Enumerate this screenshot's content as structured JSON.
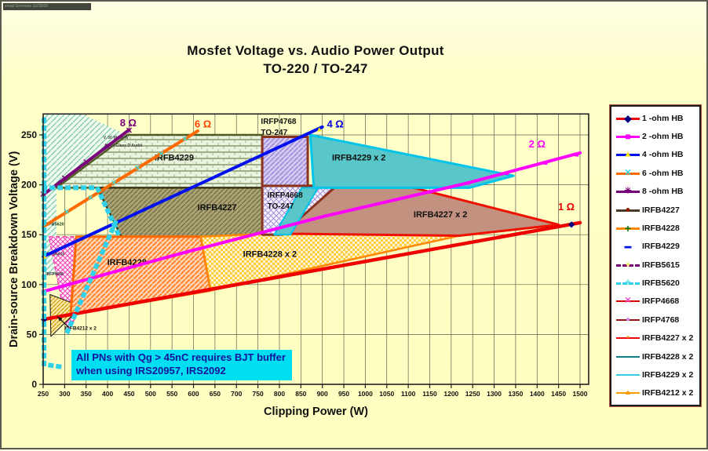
{
  "frame": {
    "corner_text": "email Germano 10/28/08"
  },
  "title": {
    "line1": "Mosfet Voltage vs.  Audio Power Output",
    "line2": "TO-220 / TO-247"
  },
  "note": {
    "line1": "All PNs with Qg > 45nC requires BJT buffer",
    "line2": "when using IRS20957, IRS2092"
  },
  "legend": {
    "items": [
      {
        "label": "1 -ohm HB",
        "line": {
          "color": "#ee0000",
          "style": "solid",
          "width": 3
        },
        "marker": {
          "glyph": "◆",
          "color": "#000080",
          "size": 12
        }
      },
      {
        "label": "2 -ohm HB",
        "line": {
          "color": "#ff00ff",
          "style": "solid",
          "width": 3
        },
        "marker": {
          "glyph": "■",
          "color": "#ff00ff",
          "size": 12
        }
      },
      {
        "label": "4 -ohm HB",
        "line": {
          "color": "#0011ee",
          "style": "solid",
          "width": 3
        },
        "marker": {
          "glyph": "▲",
          "color": "#ffe400",
          "size": 11
        }
      },
      {
        "label": "6 -ohm HB",
        "line": {
          "color": "#ff6a00",
          "style": "solid",
          "width": 3
        },
        "marker": {
          "glyph": "✕",
          "color": "#2fd0e8",
          "size": 11
        }
      },
      {
        "label": "8 -ohm HB",
        "line": {
          "color": "#7a007a",
          "style": "solid",
          "width": 3
        },
        "marker": {
          "glyph": "✳",
          "color": "#7a007a",
          "size": 11
        }
      },
      {
        "label": "IRFB4227",
        "line": {
          "color": "#4a3b22",
          "style": "solid",
          "width": 3
        },
        "marker": {
          "glyph": "●",
          "color": "#8b1a00",
          "size": 11
        }
      },
      {
        "label": "IRFB4228",
        "line": {
          "color": "#ff8800",
          "style": "solid",
          "width": 3
        },
        "marker": {
          "glyph": "+",
          "color": "#007700",
          "size": 14
        }
      },
      {
        "label": "IRFB4229",
        "line": {
          "color": "none",
          "style": "none",
          "width": 0
        },
        "marker": {
          "glyph": "▬",
          "color": "#0011ee",
          "size": 9
        }
      },
      {
        "label": "IRFB5615",
        "line": {
          "color": "#7a007a",
          "style": "dashed",
          "width": 3
        },
        "marker": {
          "glyph": "●",
          "color": "#ffe46a",
          "size": 10
        }
      },
      {
        "label": "IRFB5620",
        "line": {
          "color": "#2fd0e8",
          "style": "dashed",
          "width": 3
        },
        "marker": {
          "glyph": "✦",
          "color": "#7de4ef",
          "size": 11
        }
      },
      {
        "label": "IRFP4668",
        "line": {
          "color": "#dd0000",
          "style": "solid",
          "width": 2
        },
        "marker": {
          "glyph": "✕",
          "color": "#ff44cc",
          "size": 11
        }
      },
      {
        "label": "IRFP4768",
        "line": {
          "color": "#991111",
          "style": "solid",
          "width": 2
        },
        "marker": {
          "glyph": "●",
          "color": "#cc88ee",
          "size": 10
        }
      },
      {
        "label": "IRFB4227 x 2",
        "line": {
          "color": "#ee0000",
          "style": "solid",
          "width": 2
        },
        "marker": {
          "glyph": "▪",
          "color": "#ff8800",
          "size": 10
        }
      },
      {
        "label": "IRFB4228 x 2",
        "line": {
          "color": "#0e7d86",
          "style": "solid",
          "width": 2
        },
        "marker": {
          "glyph": "",
          "color": "",
          "size": 0
        }
      },
      {
        "label": "IRFB4229 x 2",
        "line": {
          "color": "#35cbe3",
          "style": "solid",
          "width": 2
        },
        "marker": {
          "glyph": "",
          "color": "",
          "size": 0
        }
      },
      {
        "label": "IRFB4212 x 2",
        "line": {
          "color": "#ff9900",
          "style": "solid",
          "width": 2
        },
        "marker": {
          "glyph": "▲",
          "color": "#ff9900",
          "size": 10
        }
      }
    ]
  },
  "chart_data": {
    "type": "area",
    "title": "Mosfet Voltage vs. Audio Power Output TO-220 / TO-247",
    "xlabel": "Clipping Power (W)",
    "ylabel": "Drain-source Breakdown Voltage (V)",
    "xlim": [
      250,
      1520
    ],
    "ylim": [
      0,
      271
    ],
    "grid": true,
    "x_ticks": [
      250,
      300,
      350,
      400,
      450,
      500,
      550,
      600,
      650,
      700,
      750,
      800,
      850,
      900,
      950,
      1000,
      1050,
      1100,
      1150,
      1200,
      1250,
      1300,
      1350,
      1400,
      1450,
      1500
    ],
    "y_ticks": [
      0,
      50,
      100,
      150,
      200,
      250
    ],
    "regions": [
      {
        "name": "IRFB5615-area",
        "fill": "greenhatch",
        "stroke": "none",
        "w": 0,
        "points": [
          [
            252,
            271
          ],
          [
            340,
            271
          ],
          [
            446,
            250
          ],
          [
            281,
            197
          ],
          [
            281,
            110
          ],
          [
            252,
            110
          ]
        ]
      },
      {
        "name": "IRFB4229",
        "fill": "brick",
        "stroke": "#4f5a22",
        "w": 2.5,
        "points": [
          [
            281,
            197
          ],
          [
            446,
            250
          ],
          [
            760,
            250
          ],
          [
            760,
            197
          ]
        ]
      },
      {
        "name": "IRFB4227",
        "fill": "olive",
        "stroke": "#3f3a1c",
        "w": 2.5,
        "points": [
          [
            376,
            197
          ],
          [
            760,
            197
          ],
          [
            760,
            148
          ],
          [
            432,
            148
          ]
        ]
      },
      {
        "name": "IRFP4668-small",
        "fill": "pinkx",
        "stroke": "#f23fb4",
        "w": 1.5,
        "dash": "5 4",
        "points": [
          [
            263,
            148
          ],
          [
            412,
            148
          ],
          [
            308,
            52
          ]
        ]
      },
      {
        "name": "IRFB4212x2",
        "fill": "goldhatch",
        "stroke": "#111111",
        "w": 1,
        "points": [
          [
            266,
            90
          ],
          [
            340,
            78
          ],
          [
            268,
            48
          ]
        ]
      },
      {
        "name": "IRFB4228",
        "fill": "orangehatch",
        "stroke": "#ff6600",
        "w": 3,
        "points": [
          [
            327,
            148
          ],
          [
            617,
            148
          ],
          [
            640,
            94
          ],
          [
            314,
            70
          ]
        ]
      },
      {
        "name": "IRFB4228x2",
        "fill": "checker",
        "stroke": "#ff8800",
        "w": 2.5,
        "points": [
          [
            617,
            148
          ],
          [
            829,
            152
          ],
          [
            1219,
            149
          ],
          [
            640,
            94
          ]
        ]
      },
      {
        "name": "IRFB4227x2",
        "fill": "brown",
        "stroke": "#ee1100",
        "w": 3,
        "points": [
          [
            805,
            151
          ],
          [
            933,
            199
          ],
          [
            1095,
            199
          ],
          [
            1450,
            160
          ],
          [
            1219,
            149
          ]
        ]
      },
      {
        "name": "IRFP4668",
        "fill": "xhatch",
        "stroke": "#8a3420",
        "w": 3,
        "points": [
          [
            760,
            199
          ],
          [
            933,
            199
          ],
          [
            805,
            150
          ],
          [
            760,
            150
          ]
        ]
      },
      {
        "name": "IRFB4229x2-tail",
        "fill": "teal",
        "stroke": "#00c4ea",
        "w": 2,
        "points": [
          [
            788,
            150
          ],
          [
            826,
            150
          ],
          [
            890,
            197
          ],
          [
            852,
            197
          ]
        ]
      },
      {
        "name": "IRFB4229x2",
        "fill": "teal",
        "stroke": "#00c4ea",
        "w": 3,
        "points": [
          [
            872,
            250
          ],
          [
            1345,
            209
          ],
          [
            1242,
            197
          ],
          [
            880,
            197
          ]
        ]
      },
      {
        "name": "IRFP4768",
        "fill": "lavhatch",
        "stroke": "#8a3420",
        "w": 3,
        "points": [
          [
            760,
            199
          ],
          [
            866,
            199
          ],
          [
            866,
            248
          ],
          [
            760,
            248
          ]
        ]
      }
    ],
    "region_labels": [
      {
        "t": "IRFB4229",
        "p": 555,
        "v": 227,
        "s": 11
      },
      {
        "t": "IRFB4227",
        "p": 655,
        "v": 177,
        "s": 11
      },
      {
        "t": "IRFB4228",
        "p": 445,
        "v": 122,
        "s": 11
      },
      {
        "t": "IRFB4228 x 2",
        "p": 778,
        "v": 130,
        "s": 11
      },
      {
        "t": "IRFB4227 x 2",
        "p": 1175,
        "v": 170,
        "s": 11
      },
      {
        "t": "IRFB4229 x 2",
        "p": 985,
        "v": 227,
        "s": 11
      },
      {
        "t": "IRFP4768",
        "p": 757,
        "v": 263,
        "s": 10,
        "a": "start"
      },
      {
        "t": "TO-247",
        "p": 757,
        "v": 252,
        "s": 10,
        "a": "start"
      },
      {
        "t": "IRFP4668",
        "p": 772,
        "v": 189,
        "s": 10,
        "a": "start"
      },
      {
        "t": "TO-247",
        "p": 772,
        "v": 178,
        "s": 10,
        "a": "start"
      },
      {
        "t": "IRFB5620",
        "p": 253,
        "v": 160,
        "s": 5.5,
        "a": "start",
        "c": "#143d22"
      },
      {
        "t": "IRFB5615",
        "p": 258,
        "v": 130,
        "s": 5,
        "a": "start",
        "c": "#333333"
      },
      {
        "t": "IRFP4668",
        "p": 256,
        "v": 110,
        "s": 5,
        "a": "start",
        "c": "#333333"
      },
      {
        "t": "IRFB4212 x 2",
        "p": 300,
        "v": 56,
        "s": 6.5,
        "a": "start"
      },
      {
        "t": "V, 50 W HB W",
        "p": 390,
        "v": 247,
        "s": 5,
        "a": "start",
        "c": "#444444"
      },
      {
        "t": "at 4% Class D Audio",
        "p": 393,
        "v": 239,
        "s": 5,
        "a": "start",
        "c": "#444444"
      }
    ],
    "load_lines": [
      {
        "name": "8-ohm HB",
        "color": "#7a007a",
        "width": 4,
        "points": [
          [
            250,
            190
          ],
          [
            450,
            255
          ]
        ],
        "markers": [
          {
            "g": "✕",
            "c": "#7a007a",
            "s": 11,
            "p": 250,
            "v": 190
          },
          {
            "g": "✕",
            "c": "#7a007a",
            "s": 11,
            "p": 300,
            "v": 206
          },
          {
            "g": "✕",
            "c": "#7a007a",
            "s": 11,
            "p": 350,
            "v": 222
          },
          {
            "g": "✕",
            "c": "#7a007a",
            "s": 11,
            "p": 400,
            "v": 238
          },
          {
            "g": "✕",
            "c": "#7a007a",
            "s": 11,
            "p": 450,
            "v": 254
          }
        ],
        "label": {
          "t": "8 Ω",
          "p": 448,
          "v": 262,
          "c": "#7a007a"
        }
      },
      {
        "name": "6-ohm HB",
        "color": "#ff6a00",
        "width": 4,
        "points": [
          [
            250,
            158
          ],
          [
            610,
            254
          ]
        ],
        "markers": [
          {
            "g": "✕",
            "c": "#35dede",
            "s": 9,
            "p": 250,
            "v": 158
          },
          {
            "g": "✕",
            "c": "#35dede",
            "s": 9,
            "p": 305,
            "v": 173
          },
          {
            "g": "✕",
            "c": "#35dede",
            "s": 9,
            "p": 360,
            "v": 187
          },
          {
            "g": "✕",
            "c": "#35dede",
            "s": 9,
            "p": 415,
            "v": 202
          },
          {
            "g": "✕",
            "c": "#35dede",
            "s": 9,
            "p": 470,
            "v": 217
          },
          {
            "g": "✕",
            "c": "#35dede",
            "s": 9,
            "p": 525,
            "v": 231
          },
          {
            "g": "✕",
            "c": "#35dede",
            "s": 9,
            "p": 580,
            "v": 246
          }
        ],
        "label": {
          "t": "6 Ω",
          "p": 622,
          "v": 261,
          "c": "#ff4400"
        }
      },
      {
        "name": "4-ohm HB",
        "color": "#0011ee",
        "width": 4,
        "points": [
          [
            250,
            128
          ],
          [
            900,
            258
          ]
        ],
        "markers": [
          {
            "g": "▲",
            "c": "#ffe400",
            "s": 9,
            "p": 253,
            "v": 128
          },
          {
            "g": "▲",
            "c": "#ffe400",
            "s": 9,
            "p": 893,
            "v": 256
          }
        ],
        "label": {
          "t": "4 Ω",
          "p": 930,
          "v": 261,
          "c": "#0000dd"
        }
      },
      {
        "name": "2-ohm HB",
        "color": "#ff00ff",
        "width": 4,
        "points": [
          [
            250,
            93
          ],
          [
            560,
            130
          ],
          [
            900,
            168
          ],
          [
            1240,
            202
          ],
          [
            1500,
            232
          ]
        ],
        "markers": [
          {
            "g": "■",
            "c": "#ff00ff",
            "s": 9,
            "p": 250,
            "v": 93
          },
          {
            "g": "■",
            "c": "#ff00ff",
            "s": 9,
            "p": 1150,
            "v": 193
          },
          {
            "g": "■",
            "c": "#ff00ff",
            "s": 9,
            "p": 1240,
            "v": 202
          },
          {
            "g": "■",
            "c": "#ff00ff",
            "s": 9,
            "p": 1330,
            "v": 212
          },
          {
            "g": "■",
            "c": "#ff00ff",
            "s": 9,
            "p": 1420,
            "v": 222
          },
          {
            "g": "■",
            "c": "#ff00ff",
            "s": 10,
            "p": 1492,
            "v": 230
          }
        ],
        "label": {
          "t": "2 Ω",
          "p": 1400,
          "v": 241,
          "c": "#ff00ff"
        }
      },
      {
        "name": "1-ohm HB",
        "color": "#ee0000",
        "width": 4.5,
        "points": [
          [
            250,
            65
          ],
          [
            1500,
            162
          ]
        ],
        "markers": [
          {
            "g": "◆",
            "c": "#000080",
            "s": 10,
            "p": 252,
            "v": 65
          },
          {
            "g": "◆",
            "c": "#000080",
            "s": 10,
            "p": 1480,
            "v": 160
          }
        ],
        "label": {
          "t": "1 Ω",
          "p": 1468,
          "v": 178,
          "c": "#ee0000"
        }
      }
    ],
    "dashed_paths": [
      {
        "name": "IRFB5620-v",
        "color": "#2fd0e8",
        "width": 6,
        "dash": "1 9",
        "points": [
          [
            252,
            265
          ],
          [
            252,
            20
          ],
          [
            300,
            17
          ]
        ]
      },
      {
        "name": "IRFB5620-h",
        "color": "#2fd0e8",
        "width": 6,
        "dash": "1 9",
        "points": [
          [
            252,
            197
          ],
          [
            376,
            197
          ],
          [
            430,
            146
          ]
        ]
      },
      {
        "name": "IRFB5620-d",
        "color": "#2fd0e8",
        "width": 6,
        "dash": "1 9",
        "points": [
          [
            418,
            162
          ],
          [
            305,
            51
          ]
        ]
      }
    ],
    "arrow": {
      "from": [
        310,
        57
      ],
      "to": [
        283,
        68
      ]
    }
  }
}
